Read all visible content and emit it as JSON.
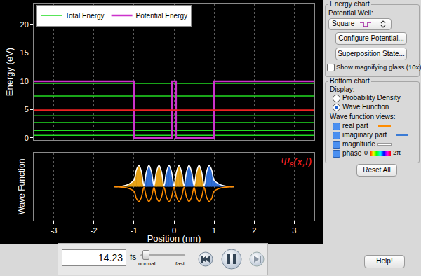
{
  "chart_data": [
    {
      "type": "line",
      "y_label": "Energy (eV)",
      "xlim": [
        -3.5,
        3.5
      ],
      "xticks": [
        -3,
        -2,
        -1,
        0,
        1,
        2,
        3
      ],
      "ylim": [
        -0.4,
        23.7
      ],
      "yticks": [
        0,
        5,
        10,
        15,
        20
      ],
      "grid": true,
      "tick_labels": "y",
      "legend": "top left",
      "series": [
        {
          "name": "Total Energy",
          "color": "#22dd22",
          "levels": [
            0.45,
            1.3,
            2.7,
            3.9,
            7.4,
            9.6
          ]
        },
        {
          "name": "Potential Energy",
          "color": "#cc33cc",
          "x": [
            -3.5,
            -1,
            -1,
            -0.05,
            -0.05,
            0.05,
            0.05,
            1,
            1,
            3.5
          ],
          "values": [
            10,
            10,
            0,
            0,
            10,
            10,
            0,
            0,
            10,
            10
          ]
        }
      ],
      "selected_level": {
        "value": 4.9,
        "color": "#ee2222"
      }
    },
    {
      "type": "line",
      "y_label": "Wave Function",
      "x_label": "Position (nm)",
      "xlim": [
        -3.5,
        3.5
      ],
      "xticks": [
        -3,
        -2,
        -1,
        0,
        1,
        2,
        3
      ],
      "ylim": [
        -1.6,
        1.6
      ],
      "grid": true,
      "tick_labels": "x",
      "x": [
        -1.5,
        -1.375,
        -1.25,
        -1.125,
        -1,
        -0.9375,
        -0.875,
        -0.8125,
        -0.75,
        -0.6875,
        -0.625,
        -0.5625,
        -0.5,
        -0.4375,
        -0.375,
        -0.3125,
        -0.25,
        -0.1875,
        -0.125,
        -0.0625,
        0,
        0.0625,
        0.125,
        0.1875,
        0.25,
        0.3125,
        0.375,
        0.4375,
        0.5,
        0.5625,
        0.625,
        0.6875,
        0.75,
        0.8125,
        0.875,
        0.9375,
        1,
        1.125,
        1.25,
        1.375,
        1.5
      ],
      "series": [
        {
          "color": "#ffffff",
          "values": [
            0,
            0.01,
            0.04,
            0.12,
            0.3,
            0.8,
            1,
            0.7,
            0.04,
            0.7,
            1,
            0.7,
            0.04,
            0.7,
            1,
            0.7,
            0.04,
            0.7,
            1,
            0.7,
            0.04,
            0.7,
            1,
            0.7,
            0.04,
            0.7,
            1,
            0.7,
            0.04,
            0.7,
            1,
            0.7,
            0.04,
            0.7,
            1,
            0.8,
            0.3,
            0.12,
            0.04,
            0.01,
            0
          ],
          "fill_colors": [
            "#e8a317",
            "#e8a317",
            "#e8a317",
            "#e8a317",
            "#e8a317",
            "#e8a317",
            "#e8a317",
            "#e8a317",
            "#2f6fd6",
            "#2f6fd6",
            "#2f6fd6",
            "#2f6fd6",
            "#e8a317",
            "#e8a317",
            "#e8a317",
            "#e8a317",
            "#2f6fd6",
            "#2f6fd6",
            "#2f6fd6",
            "#2f6fd6",
            "#e8a317",
            "#e8a317",
            "#e8a317",
            "#e8a317",
            "#2f6fd6",
            "#2f6fd6",
            "#2f6fd6",
            "#2f6fd6",
            "#e8a317",
            "#e8a317",
            "#e8a317",
            "#e8a317",
            "#2f6fd6",
            "#2f6fd6",
            "#2f6fd6",
            "#2f6fd6",
            "#2f6fd6",
            "#2f6fd6",
            "#2f6fd6",
            "#2f6fd6"
          ]
        },
        {
          "color": "#ff8c00",
          "values": [
            0,
            -0.01,
            -0.03,
            -0.08,
            -0.21,
            -0.56,
            -0.7,
            -0.49,
            -0.03,
            -0.49,
            -0.7,
            -0.49,
            -0.03,
            -0.49,
            -0.7,
            -0.49,
            -0.03,
            -0.49,
            -0.7,
            -0.49,
            -0.03,
            -0.49,
            -0.7,
            -0.49,
            -0.03,
            -0.49,
            -0.7,
            -0.49,
            -0.03,
            -0.49,
            -0.7,
            -0.49,
            -0.03,
            -0.49,
            -0.7,
            -0.56,
            -0.21,
            -0.08,
            -0.03,
            -0.01,
            0
          ]
        }
      ],
      "state_label": {
        "symbol": "Ψ",
        "index": "8",
        "args": "(x,t)",
        "color": "#ff2020"
      }
    }
  ],
  "energy_controls": {
    "title": "Energy chart",
    "potential_label": "Potential Well:",
    "potential_choice": "Square",
    "buttons": [
      "Configure Potential...",
      "Superposition State..."
    ],
    "checkbox": {
      "label": "Show magnifying glass (10x)",
      "checked": false
    }
  },
  "bottom_controls": {
    "title": "Bottom chart",
    "display_label": "Display:",
    "display_options": [
      "Probability Density",
      "Wave Function"
    ],
    "selected": "Wave Function",
    "views_label": "Wave function views:",
    "views": [
      {
        "label": "real part",
        "checked": true,
        "color": "#ff8c00"
      },
      {
        "label": "imaginary part",
        "checked": true,
        "color": "#3a7bd5"
      },
      {
        "label": "magnitude",
        "checked": true,
        "color": "#ffffff"
      },
      {
        "label": "phase",
        "checked": true,
        "scale": [
          "0",
          "2π"
        ]
      }
    ]
  },
  "reset_button": "Reset All",
  "clock": {
    "time": 14.23,
    "unit": "fs",
    "speed_labels": [
      "normal",
      "fast"
    ]
  },
  "help_button": "Help!"
}
